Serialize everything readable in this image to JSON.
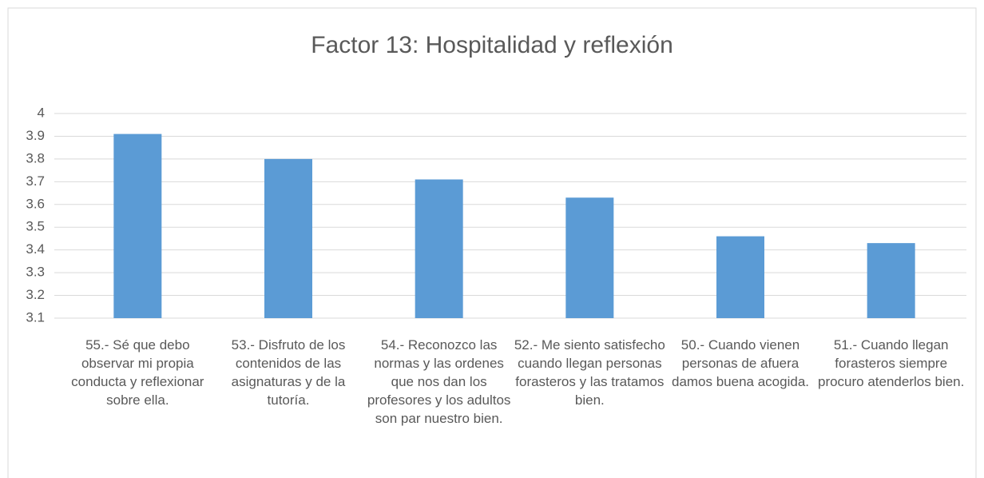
{
  "chart_data": {
    "type": "bar",
    "title": "Factor 13: Hospitalidad y reflexión",
    "categories": [
      "55.- Sé que debo observar mi propia conducta y reflexionar sobre ella.",
      "53.- Disfruto de los contenidos de las asignaturas y de la tutoría.",
      "54.- Reconozco las normas y las ordenes que nos dan los profesores y los adultos son par nuestro bien.",
      "52.- Me siento satisfecho cuando llegan personas forasteros y las tratamos bien.",
      "50.- Cuando vienen personas de afuera damos buena acogida.",
      "51.- Cuando llegan forasteros siempre procuro atenderlos bien."
    ],
    "values": [
      3.91,
      3.8,
      3.71,
      3.63,
      3.46,
      3.43
    ],
    "color": "#5b9bd5",
    "ylim": [
      3.1,
      4
    ],
    "yticks": [
      3.1,
      3.2,
      3.3,
      3.4,
      3.5,
      3.6,
      3.7,
      3.8,
      3.9,
      4
    ],
    "grid": true
  }
}
